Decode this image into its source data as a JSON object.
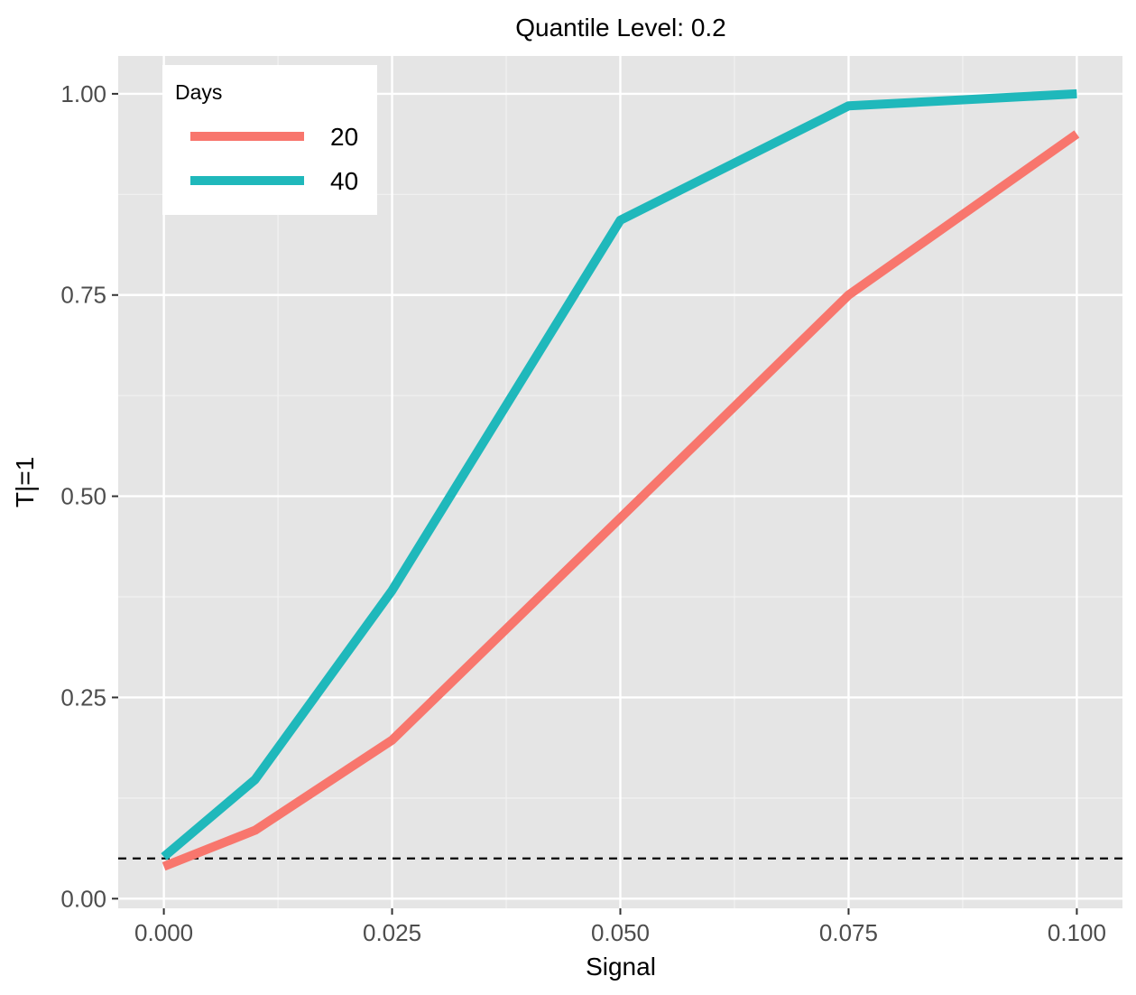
{
  "chart_data": {
    "type": "line",
    "title": "Quantile Level: 0.2",
    "xlabel": "Signal",
    "ylabel": "T|=1",
    "x": [
      0,
      0.01,
      0.025,
      0.05,
      0.075,
      0.1
    ],
    "xticks": [
      0,
      0.025,
      0.05,
      0.075,
      0.1
    ],
    "xtick_labels": [
      "0.000",
      "0.025",
      "0.050",
      "0.075",
      "0.100"
    ],
    "yticks": [
      0,
      0.25,
      0.5,
      0.75,
      1
    ],
    "ytick_labels": [
      "0.00",
      "0.25",
      "0.50",
      "0.75",
      "1.00"
    ],
    "xlim": [
      -0.005,
      0.105
    ],
    "ylim": [
      -0.012,
      1.047
    ],
    "grid": true,
    "reference_line": {
      "y": 0.05,
      "style": "dashed",
      "color": "#000000"
    },
    "legend": {
      "title": "Days",
      "placement": "top-left"
    },
    "series": [
      {
        "name": "20",
        "color": "#F8766D",
        "values": [
          0.04,
          0.085,
          0.197,
          0.473,
          0.75,
          0.95
        ]
      },
      {
        "name": "40",
        "color": "#1FB8BB",
        "values": [
          0.052,
          0.148,
          0.383,
          0.843,
          0.985,
          1.0
        ]
      }
    ]
  }
}
